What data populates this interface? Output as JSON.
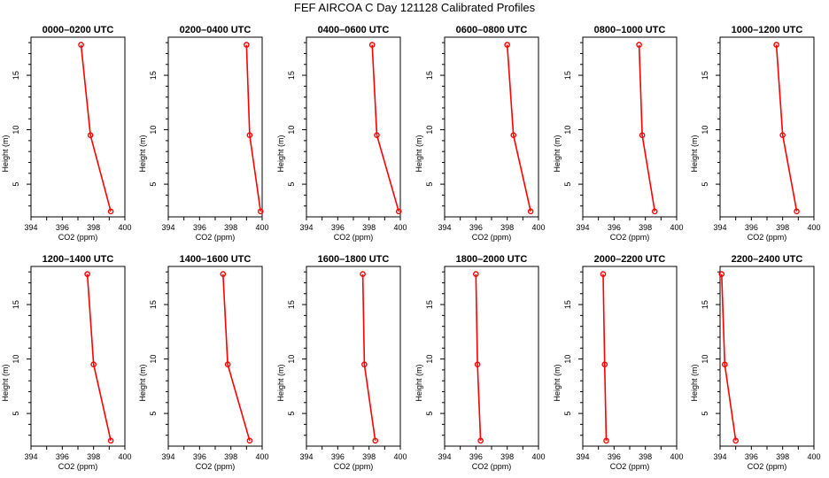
{
  "title": "FEF AIRCOA C  Day 121128  Calibrated Profiles",
  "colors": {
    "profile": "#ff0000",
    "axis": "#000000",
    "background": "#ffffff"
  },
  "chart_data": [
    {
      "type": "line",
      "title": "0000–0200 UTC",
      "xlabel": "CO2 (ppm)",
      "ylabel": "Height (m)",
      "xlim": [
        394,
        400
      ],
      "ylim": [
        2,
        18.5
      ],
      "xticks": [
        394,
        396,
        398,
        400
      ],
      "yticks": [
        5,
        10,
        15
      ],
      "x": [
        399.1,
        397.8,
        397.2
      ],
      "y": [
        2.5,
        9.5,
        17.8
      ]
    },
    {
      "type": "line",
      "title": "0200–0400 UTC",
      "xlabel": "CO2 (ppm)",
      "ylabel": "Height (m)",
      "xlim": [
        394,
        400
      ],
      "ylim": [
        2,
        18.5
      ],
      "xticks": [
        394,
        396,
        398,
        400
      ],
      "yticks": [
        5,
        10,
        15
      ],
      "x": [
        399.9,
        399.2,
        399.0
      ],
      "y": [
        2.5,
        9.5,
        17.8
      ]
    },
    {
      "type": "line",
      "title": "0400–0600 UTC",
      "xlabel": "CO2 (ppm)",
      "ylabel": "Height (m)",
      "xlim": [
        394,
        400
      ],
      "ylim": [
        2,
        18.5
      ],
      "xticks": [
        394,
        396,
        398,
        400
      ],
      "yticks": [
        5,
        10,
        15
      ],
      "x": [
        399.9,
        398.5,
        398.2
      ],
      "y": [
        2.5,
        9.5,
        17.8
      ]
    },
    {
      "type": "line",
      "title": "0600–0800 UTC",
      "xlabel": "CO2 (ppm)",
      "ylabel": "Height (m)",
      "xlim": [
        394,
        400
      ],
      "ylim": [
        2,
        18.5
      ],
      "xticks": [
        394,
        396,
        398,
        400
      ],
      "yticks": [
        5,
        10,
        15
      ],
      "x": [
        399.5,
        398.4,
        398.0
      ],
      "y": [
        2.5,
        9.5,
        17.8
      ]
    },
    {
      "type": "line",
      "title": "0800–1000 UTC",
      "xlabel": "CO2 (ppm)",
      "ylabel": "Height (m)",
      "xlim": [
        394,
        400
      ],
      "ylim": [
        2,
        18.5
      ],
      "xticks": [
        394,
        396,
        398,
        400
      ],
      "yticks": [
        5,
        10,
        15
      ],
      "x": [
        398.6,
        397.8,
        397.6
      ],
      "y": [
        2.5,
        9.5,
        17.8
      ]
    },
    {
      "type": "line",
      "title": "1000–1200 UTC",
      "xlabel": "CO2 (ppm)",
      "ylabel": "Height (m)",
      "xlim": [
        394,
        400
      ],
      "ylim": [
        2,
        18.5
      ],
      "xticks": [
        394,
        396,
        398,
        400
      ],
      "yticks": [
        5,
        10,
        15
      ],
      "x": [
        398.9,
        398.0,
        397.6
      ],
      "y": [
        2.5,
        9.5,
        17.8
      ]
    },
    {
      "type": "line",
      "title": "1200–1400 UTC",
      "xlabel": "CO2 (ppm)",
      "ylabel": "Height (m)",
      "xlim": [
        394,
        400
      ],
      "ylim": [
        2,
        18.5
      ],
      "xticks": [
        394,
        396,
        398,
        400
      ],
      "yticks": [
        5,
        10,
        15
      ],
      "x": [
        399.1,
        398.0,
        397.6
      ],
      "y": [
        2.5,
        9.5,
        17.8
      ]
    },
    {
      "type": "line",
      "title": "1400–1600 UTC",
      "xlabel": "CO2 (ppm)",
      "ylabel": "Height (m)",
      "xlim": [
        394,
        400
      ],
      "ylim": [
        2,
        18.5
      ],
      "xticks": [
        394,
        396,
        398,
        400
      ],
      "yticks": [
        5,
        10,
        15
      ],
      "x": [
        399.2,
        397.8,
        397.5
      ],
      "y": [
        2.5,
        9.5,
        17.8
      ]
    },
    {
      "type": "line",
      "title": "1600–1800 UTC",
      "xlabel": "CO2 (ppm)",
      "ylabel": "Height (m)",
      "xlim": [
        394,
        400
      ],
      "ylim": [
        2,
        18.5
      ],
      "xticks": [
        394,
        396,
        398,
        400
      ],
      "yticks": [
        5,
        10,
        15
      ],
      "x": [
        398.4,
        397.7,
        397.6
      ],
      "y": [
        2.5,
        9.5,
        17.8
      ]
    },
    {
      "type": "line",
      "title": "1800–2000 UTC",
      "xlabel": "CO2 (ppm)",
      "ylabel": "Height (m)",
      "xlim": [
        394,
        400
      ],
      "ylim": [
        2,
        18.5
      ],
      "xticks": [
        394,
        396,
        398,
        400
      ],
      "yticks": [
        5,
        10,
        15
      ],
      "x": [
        396.3,
        396.1,
        396.0
      ],
      "y": [
        2.5,
        9.5,
        17.8
      ]
    },
    {
      "type": "line",
      "title": "2000–2200 UTC",
      "xlabel": "CO2 (ppm)",
      "ylabel": "Height (m)",
      "xlim": [
        394,
        400
      ],
      "ylim": [
        2,
        18.5
      ],
      "xticks": [
        394,
        396,
        398,
        400
      ],
      "yticks": [
        5,
        10,
        15
      ],
      "x": [
        395.5,
        395.4,
        395.3
      ],
      "y": [
        2.5,
        9.5,
        17.8
      ]
    },
    {
      "type": "line",
      "title": "2200–2400 UTC",
      "xlabel": "CO2 (ppm)",
      "ylabel": "Height (m)",
      "xlim": [
        394,
        400
      ],
      "ylim": [
        2,
        18.5
      ],
      "xticks": [
        394,
        396,
        398,
        400
      ],
      "yticks": [
        5,
        10,
        15
      ],
      "x": [
        395.0,
        394.3,
        394.1
      ],
      "y": [
        2.5,
        9.5,
        17.8
      ]
    }
  ]
}
